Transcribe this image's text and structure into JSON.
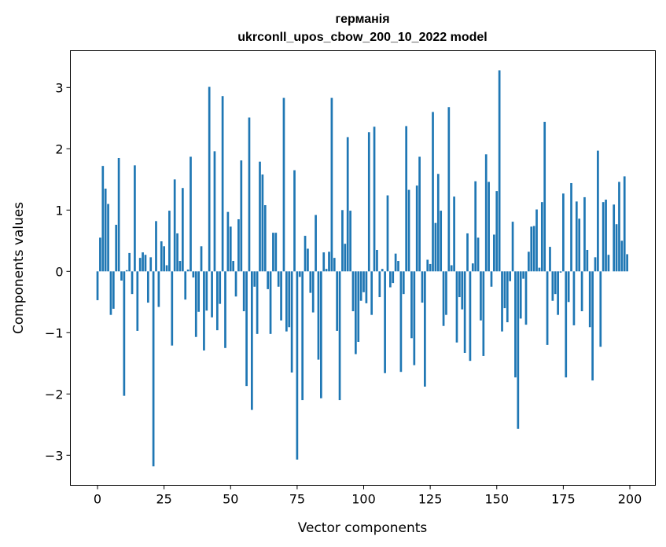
{
  "chart_data": {
    "type": "bar",
    "title_lines": [
      "германія",
      "ukrconll_upos_cbow_200_10_2022 model"
    ],
    "xlabel": "Vector components",
    "ylabel": "Components values",
    "xlim": [
      -10.2,
      209.6
    ],
    "ylim": [
      -3.49,
      3.6
    ],
    "grid": false,
    "bar_color": "#1f77b4",
    "xticks": [
      0,
      25,
      50,
      75,
      100,
      125,
      150,
      175,
      200
    ],
    "xtick_labels": [
      "0",
      "25",
      "50",
      "75",
      "100",
      "125",
      "150",
      "175",
      "200"
    ],
    "yticks": [
      -3,
      -2,
      -1,
      0,
      1,
      2,
      3
    ],
    "ytick_labels": [
      "−3",
      "−2",
      "−1",
      "0",
      "1",
      "2",
      "3"
    ],
    "values": [
      -0.47,
      0.55,
      1.72,
      1.35,
      1.1,
      -0.71,
      -0.61,
      0.76,
      1.85,
      -0.15,
      -2.03,
      0.02,
      0.3,
      -0.37,
      1.73,
      -0.97,
      0.22,
      0.31,
      0.27,
      -0.51,
      0.23,
      -3.18,
      0.82,
      -0.58,
      0.49,
      0.41,
      0.1,
      0.99,
      -1.21,
      1.5,
      0.62,
      0.17,
      1.36,
      -0.46,
      0.03,
      1.87,
      -0.1,
      -1.07,
      -0.66,
      0.41,
      -1.29,
      -0.64,
      3.01,
      -0.75,
      1.96,
      -0.96,
      -0.53,
      2.86,
      -1.25,
      0.97,
      0.73,
      0.17,
      -0.41,
      0.85,
      1.81,
      -0.65,
      -1.87,
      2.51,
      -2.26,
      -0.25,
      -1.02,
      1.79,
      1.58,
      1.08,
      -0.29,
      -1.02,
      0.63,
      0.63,
      -0.25,
      -0.8,
      2.83,
      -0.98,
      -0.91,
      -1.65,
      1.65,
      -3.07,
      -0.09,
      -2.1,
      0.58,
      0.37,
      -0.35,
      -0.67,
      0.92,
      -1.44,
      -2.07,
      0.31,
      0.04,
      0.32,
      2.83,
      0.22,
      -0.97,
      -2.1,
      1.0,
      0.45,
      2.19,
      0.99,
      -0.65,
      -1.35,
      -1.15,
      -0.48,
      -0.34,
      -0.52,
      2.27,
      -0.71,
      2.36,
      0.35,
      -0.42,
      0.04,
      -1.66,
      1.24,
      -0.26,
      -0.19,
      0.29,
      0.17,
      -1.64,
      -0.37,
      2.37,
      1.33,
      -1.09,
      -1.53,
      1.4,
      1.87,
      -0.51,
      -1.88,
      0.19,
      0.12,
      2.6,
      0.79,
      1.59,
      0.99,
      -0.89,
      -0.71,
      2.68,
      0.1,
      1.22,
      -1.16,
      -0.42,
      -0.62,
      -1.33,
      0.62,
      -1.46,
      0.13,
      1.47,
      0.55,
      -0.8,
      -1.38,
      1.91,
      1.46,
      -0.25,
      0.6,
      1.31,
      3.28,
      -0.98,
      -0.6,
      -0.83,
      -0.16,
      0.81,
      -1.73,
      -2.57,
      -0.77,
      -0.12,
      -0.87,
      0.32,
      0.73,
      0.74,
      1.01,
      0.06,
      1.13,
      2.44,
      -1.2,
      0.4,
      -0.48,
      -0.37,
      -0.71,
      -0.02,
      1.27,
      -1.73,
      -0.5,
      1.44,
      -0.88,
      1.14,
      0.86,
      -0.65,
      1.21,
      0.35,
      -0.91,
      -1.78,
      0.23,
      1.97,
      -1.23,
      1.13,
      1.17,
      0.27,
      0.0,
      1.09,
      0.77,
      1.46,
      0.5,
      1.55,
      0.28
    ]
  }
}
